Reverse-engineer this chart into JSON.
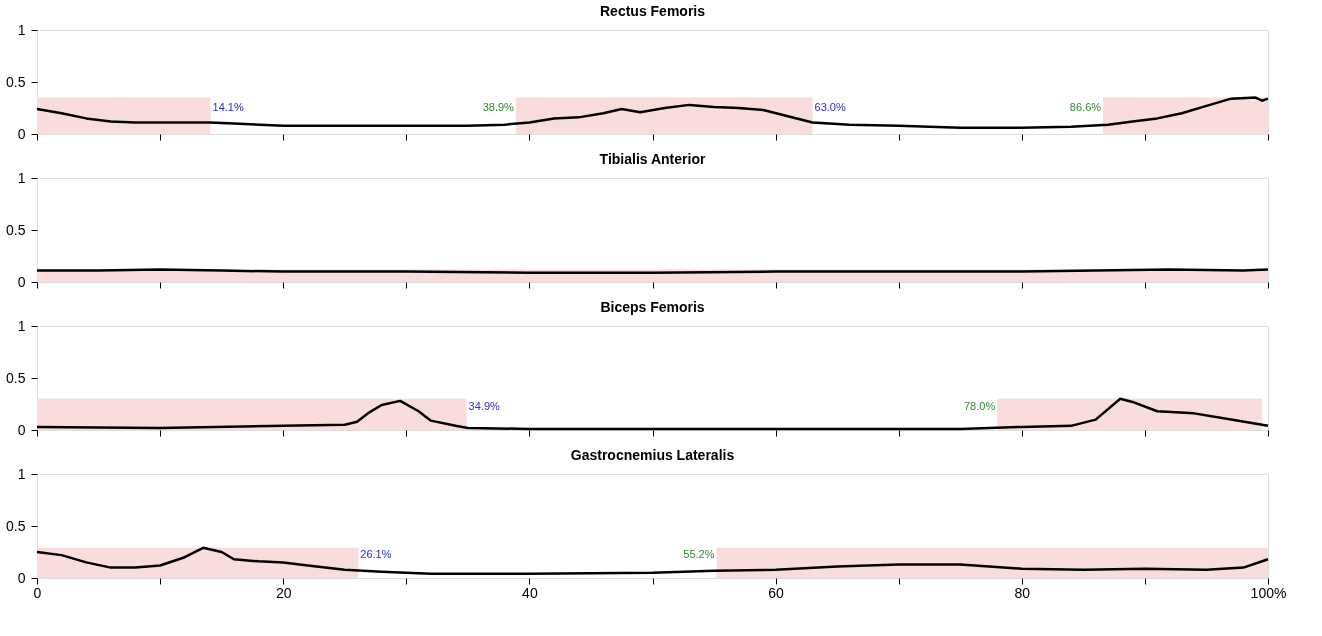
{
  "chart_data": [
    {
      "type": "line",
      "title": "Rectus Femoris",
      "tick_labels": "y",
      "grid": false,
      "line_style": "solid",
      "marker": "none",
      "xlim": [
        0,
        100
      ],
      "ylim": [
        0,
        1
      ],
      "yticks": [
        0,
        0.5,
        1
      ],
      "xticks": [
        0,
        10,
        20,
        30,
        40,
        50,
        60,
        70,
        80,
        90,
        100
      ],
      "bands": [
        {
          "axis": "x",
          "from": 0,
          "to": 14.1,
          "color": "#f9dcdc"
        },
        {
          "axis": "x",
          "from": 38.9,
          "to": 63.0,
          "color": "#f9dcdc"
        },
        {
          "axis": "x",
          "from": 86.6,
          "to": 100,
          "color": "#f9dcdc"
        }
      ],
      "annotations": [
        {
          "text": "14.1%",
          "x": 14.1,
          "y": 0.2
        },
        {
          "text": "38.9%",
          "x": 38.9,
          "y": 0.2
        },
        {
          "text": "63.0%",
          "x": 63.0,
          "y": 0.2
        },
        {
          "text": "86.6%",
          "x": 86.6,
          "y": 0.2
        }
      ],
      "series": [
        {
          "color": "#000000",
          "x": [
            0,
            2,
            4,
            6,
            8,
            10,
            12,
            14,
            16,
            20,
            25,
            30,
            35,
            38,
            40,
            42,
            44,
            46,
            47.5,
            49,
            51,
            53,
            55,
            57,
            59,
            61,
            63,
            66,
            70,
            75,
            80,
            84,
            87,
            89,
            91,
            93,
            95,
            97,
            99,
            99.5,
            100
          ],
          "values": [
            0.24,
            0.2,
            0.15,
            0.12,
            0.11,
            0.11,
            0.11,
            0.11,
            0.1,
            0.08,
            0.08,
            0.08,
            0.08,
            0.09,
            0.11,
            0.15,
            0.16,
            0.2,
            0.24,
            0.21,
            0.25,
            0.28,
            0.26,
            0.25,
            0.23,
            0.17,
            0.11,
            0.09,
            0.08,
            0.06,
            0.06,
            0.07,
            0.09,
            0.12,
            0.15,
            0.2,
            0.27,
            0.34,
            0.35,
            0.32,
            0.34
          ]
        }
      ]
    },
    {
      "type": "line",
      "title": "Tibialis Anterior",
      "tick_labels": "y",
      "grid": false,
      "line_style": "solid",
      "marker": "none",
      "xlim": [
        0,
        100
      ],
      "ylim": [
        0,
        1
      ],
      "yticks": [
        0,
        0.5,
        1
      ],
      "xticks": [
        0,
        10,
        20,
        30,
        40,
        50,
        60,
        70,
        80,
        90,
        100
      ],
      "bands": [
        {
          "axis": "x",
          "from": 0,
          "to": 100,
          "color": "#f9dcdc"
        }
      ],
      "series": [
        {
          "color": "#000000",
          "x": [
            0,
            5,
            10,
            15,
            20,
            30,
            40,
            50,
            60,
            70,
            80,
            86,
            92,
            98,
            100
          ],
          "values": [
            0.11,
            0.11,
            0.12,
            0.11,
            0.1,
            0.1,
            0.09,
            0.09,
            0.1,
            0.1,
            0.1,
            0.11,
            0.12,
            0.11,
            0.12
          ]
        }
      ]
    },
    {
      "type": "line",
      "title": "Biceps Femoris",
      "tick_labels": "y",
      "grid": false,
      "line_style": "solid",
      "marker": "none",
      "xlim": [
        0,
        100
      ],
      "ylim": [
        0,
        1
      ],
      "yticks": [
        0,
        0.5,
        1
      ],
      "xticks": [
        0,
        10,
        20,
        30,
        40,
        50,
        60,
        70,
        80,
        90,
        100
      ],
      "bands": [
        {
          "axis": "x",
          "from": 0,
          "to": 34.9,
          "color": "#f9dcdc"
        },
        {
          "axis": "x",
          "from": 78.0,
          "to": 99.5,
          "color": "#f9dcdc"
        }
      ],
      "annotations": [
        {
          "text": "34.9%",
          "x": 34.9,
          "y": 0.17
        },
        {
          "text": "78.0%",
          "x": 78.0,
          "y": 0.17
        }
      ],
      "series": [
        {
          "color": "#000000",
          "x": [
            0,
            10,
            20,
            25,
            26,
            27,
            28,
            29.5,
            31,
            32,
            34,
            35,
            40,
            60,
            75,
            80,
            84,
            86,
            88,
            89,
            91,
            94,
            97,
            100
          ],
          "values": [
            0.03,
            0.02,
            0.04,
            0.05,
            0.08,
            0.17,
            0.24,
            0.28,
            0.18,
            0.09,
            0.04,
            0.02,
            0.01,
            0.01,
            0.01,
            0.03,
            0.04,
            0.1,
            0.3,
            0.27,
            0.18,
            0.16,
            0.1,
            0.04
          ]
        }
      ]
    },
    {
      "type": "line",
      "title": "Gastrocnemius Lateralis",
      "grid": false,
      "line_style": "solid",
      "marker": "none",
      "xlim": [
        0,
        100
      ],
      "ylim": [
        0,
        1
      ],
      "yticks": [
        0,
        0.5,
        1
      ],
      "xticks": [
        0,
        {
          "value": 10,
          "label": null
        },
        20,
        {
          "value": 30,
          "label": null
        },
        40,
        {
          "value": 50,
          "label": null
        },
        60,
        {
          "value": 70,
          "label": null
        },
        80,
        {
          "value": 90,
          "label": null
        },
        {
          "value": 100,
          "label": "100%"
        }
      ],
      "bands": [
        {
          "axis": "x",
          "from": 0,
          "to": 26.1,
          "color": "#f9dcdc"
        },
        {
          "axis": "x",
          "from": 55.2,
          "to": 100,
          "color": "#f9dcdc"
        }
      ],
      "annotations": [
        {
          "text": "26.1%",
          "x": 26.1,
          "y": 0.17
        },
        {
          "text": "55.2%",
          "x": 55.2,
          "y": 0.17
        }
      ],
      "series": [
        {
          "color": "#000000",
          "x": [
            0,
            2,
            4,
            6,
            8,
            10,
            12,
            13.5,
            15,
            16,
            18,
            20,
            22,
            25,
            28,
            32,
            40,
            50,
            55,
            60,
            65,
            70,
            75,
            80,
            85,
            90,
            95,
            98,
            100
          ],
          "values": [
            0.25,
            0.22,
            0.15,
            0.1,
            0.1,
            0.12,
            0.2,
            0.29,
            0.25,
            0.18,
            0.16,
            0.15,
            0.12,
            0.08,
            0.06,
            0.04,
            0.04,
            0.05,
            0.07,
            0.08,
            0.11,
            0.13,
            0.13,
            0.09,
            0.08,
            0.09,
            0.08,
            0.1,
            0.18
          ]
        }
      ]
    }
  ]
}
